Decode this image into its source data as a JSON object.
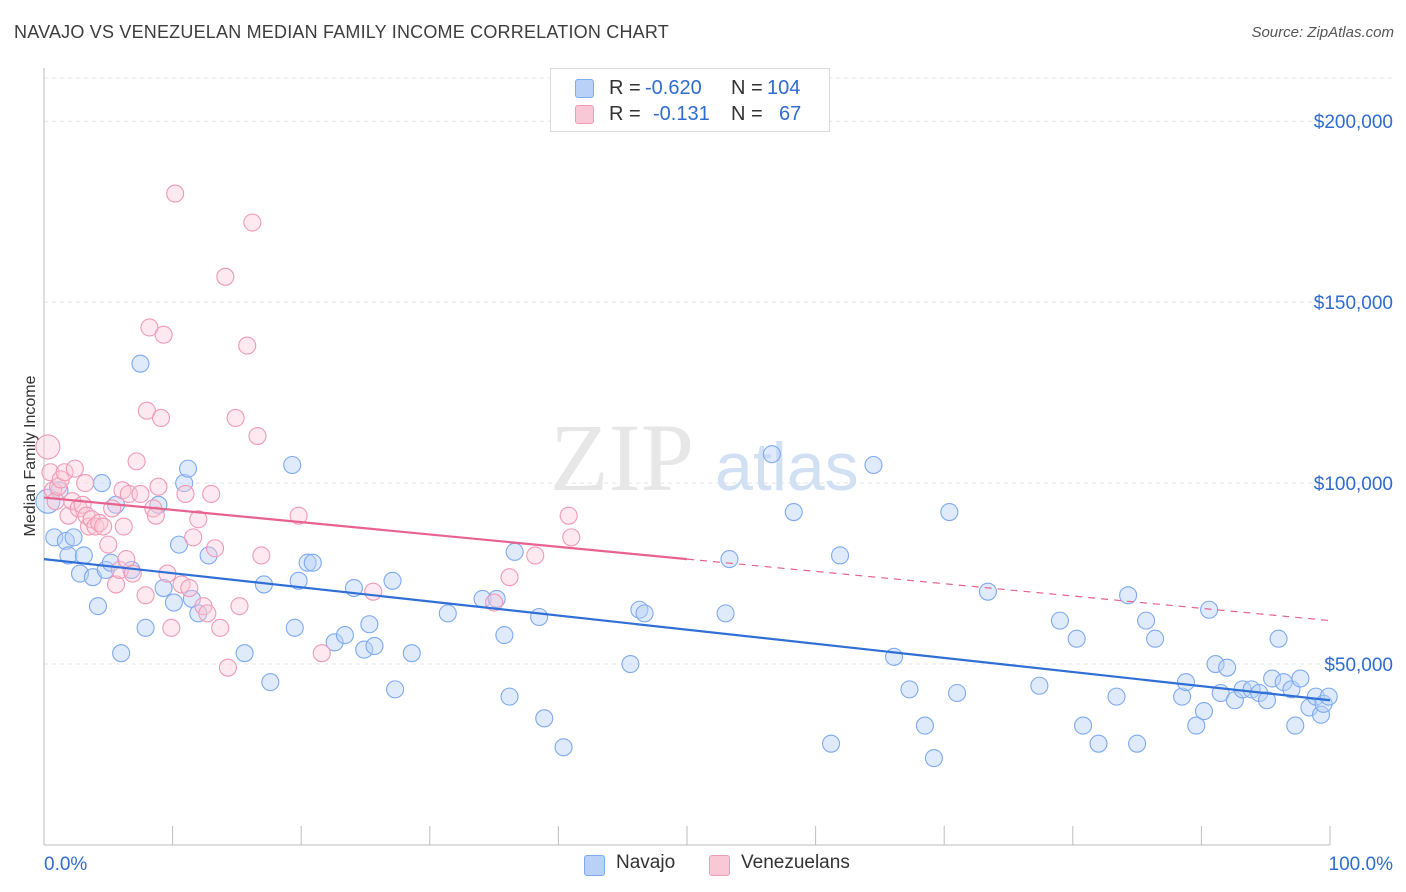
{
  "title": "NAVAJO VS VENEZUELAN MEDIAN FAMILY INCOME CORRELATION CHART",
  "source": "Source: ZipAtlas.com",
  "watermark": {
    "zip": "ZIP",
    "atlas": "atlas"
  },
  "legend": {
    "series": [
      {
        "r_label": "R =",
        "r_value": "-0.620",
        "n_label": "N =",
        "n_value": "104",
        "color": "#7eaaf0",
        "fill": "#b9d0f7"
      },
      {
        "r_label": "R =",
        "r_value": "-0.131",
        "n_label": "N =",
        "n_value": "67",
        "color": "#f09ab6",
        "fill": "#f9c8d7"
      }
    ]
  },
  "bottom_legend": [
    "Navajo",
    "Venezuelans"
  ],
  "chart_data": {
    "type": "scatter",
    "title": "NAVAJO VS VENEZUELAN MEDIAN FAMILY INCOME CORRELATION CHART",
    "xlabel": "",
    "ylabel": "Median Family Income",
    "xlim": [
      0,
      100
    ],
    "ylim": [
      0,
      210000
    ],
    "x_tick_labels": [
      "0.0%",
      "100.0%"
    ],
    "y_ticks": [
      50000,
      100000,
      150000,
      200000
    ],
    "y_tick_labels": [
      "$50,000",
      "$100,000",
      "$150,000",
      "$200,000"
    ],
    "grid": true,
    "series": [
      {
        "name": "Navajo",
        "color": "#4f86d9",
        "trend": {
          "x": [
            0,
            100
          ],
          "y": [
            79000,
            40000
          ],
          "style": "solid",
          "color": "#2f6fd6"
        },
        "points": [
          [
            0.3,
            95000
          ],
          [
            0.8,
            85000
          ],
          [
            1.2,
            98000
          ],
          [
            1.7,
            84000
          ],
          [
            1.9,
            80000
          ],
          [
            2.3,
            85000
          ],
          [
            2.8,
            75000
          ],
          [
            3.1,
            80000
          ],
          [
            3.8,
            74000
          ],
          [
            4.2,
            66000
          ],
          [
            4.5,
            100000
          ],
          [
            4.8,
            76000
          ],
          [
            5.2,
            78000
          ],
          [
            5.6,
            94000
          ],
          [
            6.0,
            53000
          ],
          [
            6.8,
            76000
          ],
          [
            7.5,
            133000
          ],
          [
            7.9,
            60000
          ],
          [
            8.9,
            94000
          ],
          [
            9.3,
            71000
          ],
          [
            10.1,
            67000
          ],
          [
            10.5,
            83000
          ],
          [
            10.9,
            100000
          ],
          [
            11.2,
            104000
          ],
          [
            11.5,
            68000
          ],
          [
            12.0,
            64000
          ],
          [
            12.8,
            80000
          ],
          [
            15.6,
            53000
          ],
          [
            17.1,
            72000
          ],
          [
            17.6,
            45000
          ],
          [
            19.3,
            105000
          ],
          [
            19.5,
            60000
          ],
          [
            19.8,
            73000
          ],
          [
            20.5,
            78000
          ],
          [
            20.9,
            78000
          ],
          [
            22.6,
            56000
          ],
          [
            23.4,
            58000
          ],
          [
            24.1,
            71000
          ],
          [
            24.9,
            54000
          ],
          [
            25.3,
            61000
          ],
          [
            25.7,
            55000
          ],
          [
            27.1,
            73000
          ],
          [
            27.3,
            43000
          ],
          [
            28.6,
            53000
          ],
          [
            31.4,
            64000
          ],
          [
            34.1,
            68000
          ],
          [
            35.2,
            68000
          ],
          [
            35.8,
            58000
          ],
          [
            36.2,
            41000
          ],
          [
            36.6,
            81000
          ],
          [
            38.5,
            63000
          ],
          [
            38.9,
            35000
          ],
          [
            40.4,
            27000
          ],
          [
            45.6,
            50000
          ],
          [
            46.3,
            65000
          ],
          [
            46.7,
            64000
          ],
          [
            53.0,
            64000
          ],
          [
            53.3,
            79000
          ],
          [
            56.6,
            108000
          ],
          [
            58.3,
            92000
          ],
          [
            61.2,
            28000
          ],
          [
            61.9,
            80000
          ],
          [
            64.5,
            105000
          ],
          [
            66.1,
            52000
          ],
          [
            67.3,
            43000
          ],
          [
            68.5,
            33000
          ],
          [
            69.2,
            24000
          ],
          [
            70.4,
            92000
          ],
          [
            71.0,
            42000
          ],
          [
            73.4,
            70000
          ],
          [
            77.4,
            44000
          ],
          [
            79.0,
            62000
          ],
          [
            80.3,
            57000
          ],
          [
            80.8,
            33000
          ],
          [
            82.0,
            28000
          ],
          [
            83.4,
            41000
          ],
          [
            84.3,
            69000
          ],
          [
            85.0,
            28000
          ],
          [
            85.7,
            62000
          ],
          [
            86.4,
            57000
          ],
          [
            88.5,
            41000
          ],
          [
            88.8,
            45000
          ],
          [
            89.6,
            33000
          ],
          [
            90.2,
            37000
          ],
          [
            90.6,
            65000
          ],
          [
            91.1,
            50000
          ],
          [
            91.5,
            42000
          ],
          [
            92.0,
            49000
          ],
          [
            92.6,
            40000
          ],
          [
            93.2,
            43000
          ],
          [
            93.9,
            43000
          ],
          [
            94.5,
            42000
          ],
          [
            95.1,
            40000
          ],
          [
            95.5,
            46000
          ],
          [
            96.0,
            57000
          ],
          [
            96.4,
            45000
          ],
          [
            97.0,
            43000
          ],
          [
            97.3,
            33000
          ],
          [
            97.7,
            46000
          ],
          [
            98.4,
            38000
          ],
          [
            98.9,
            41000
          ],
          [
            99.3,
            36000
          ],
          [
            99.5,
            39000
          ],
          [
            99.9,
            41000
          ]
        ]
      },
      {
        "name": "Venezuelans",
        "color": "#ef93b1",
        "trend": {
          "x": [
            0,
            50,
            100
          ],
          "y": [
            96000,
            79000,
            62000
          ],
          "style": "solid-then-dashed",
          "color": "#e8628f"
        },
        "points": [
          [
            0.3,
            110000
          ],
          [
            0.5,
            103000
          ],
          [
            0.7,
            98000
          ],
          [
            0.9,
            95000
          ],
          [
            1.1,
            99000
          ],
          [
            1.3,
            101000
          ],
          [
            1.6,
            103000
          ],
          [
            1.9,
            91000
          ],
          [
            2.2,
            95000
          ],
          [
            2.4,
            104000
          ],
          [
            2.7,
            93000
          ],
          [
            3.0,
            94000
          ],
          [
            3.3,
            91000
          ],
          [
            3.5,
            88000
          ],
          [
            3.7,
            90000
          ],
          [
            4.0,
            88000
          ],
          [
            4.3,
            89000
          ],
          [
            4.6,
            88000
          ],
          [
            5.0,
            83000
          ],
          [
            5.3,
            93000
          ],
          [
            5.6,
            72000
          ],
          [
            5.9,
            76000
          ],
          [
            6.1,
            98000
          ],
          [
            6.4,
            79000
          ],
          [
            6.6,
            97000
          ],
          [
            6.9,
            75000
          ],
          [
            7.2,
            106000
          ],
          [
            7.5,
            97000
          ],
          [
            7.9,
            69000
          ],
          [
            8.0,
            120000
          ],
          [
            8.2,
            143000
          ],
          [
            8.5,
            93000
          ],
          [
            8.7,
            91000
          ],
          [
            8.9,
            99000
          ],
          [
            9.1,
            118000
          ],
          [
            9.3,
            141000
          ],
          [
            9.6,
            75000
          ],
          [
            9.9,
            60000
          ],
          [
            10.2,
            180000
          ],
          [
            10.7,
            72000
          ],
          [
            11.0,
            97000
          ],
          [
            11.3,
            71000
          ],
          [
            11.6,
            85000
          ],
          [
            12.0,
            90000
          ],
          [
            12.4,
            66000
          ],
          [
            12.7,
            64000
          ],
          [
            13.0,
            97000
          ],
          [
            13.3,
            82000
          ],
          [
            13.7,
            60000
          ],
          [
            14.1,
            157000
          ],
          [
            14.3,
            49000
          ],
          [
            14.9,
            118000
          ],
          [
            15.2,
            66000
          ],
          [
            15.8,
            138000
          ],
          [
            16.2,
            172000
          ],
          [
            16.6,
            113000
          ],
          [
            16.9,
            80000
          ],
          [
            19.8,
            91000
          ],
          [
            21.6,
            53000
          ],
          [
            25.6,
            70000
          ],
          [
            36.2,
            74000
          ],
          [
            38.2,
            80000
          ],
          [
            40.8,
            91000
          ],
          [
            41.0,
            85000
          ],
          [
            35.0,
            67000
          ],
          [
            6.2,
            88000
          ],
          [
            3.2,
            100000
          ]
        ]
      }
    ]
  }
}
